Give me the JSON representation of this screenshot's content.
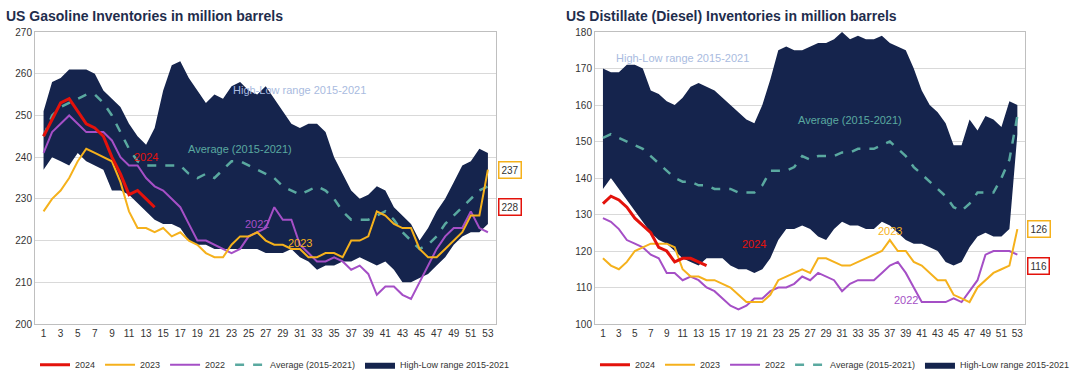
{
  "chart_data": [
    {
      "type": "line",
      "title": "US Gasoline Inventories in million barrels",
      "x": [
        1,
        2,
        3,
        4,
        5,
        6,
        7,
        8,
        9,
        10,
        11,
        12,
        13,
        14,
        15,
        16,
        17,
        18,
        19,
        20,
        21,
        22,
        23,
        24,
        25,
        26,
        27,
        28,
        29,
        30,
        31,
        32,
        33,
        34,
        35,
        36,
        37,
        38,
        39,
        40,
        41,
        42,
        43,
        44,
        45,
        46,
        47,
        48,
        49,
        50,
        51,
        52,
        53
      ],
      "xlim": [
        0,
        54
      ],
      "xticks": [
        1,
        3,
        5,
        7,
        9,
        11,
        13,
        15,
        17,
        19,
        21,
        23,
        25,
        27,
        29,
        31,
        33,
        35,
        37,
        39,
        41,
        43,
        45,
        47,
        49,
        51,
        53
      ],
      "ylim": [
        200,
        270
      ],
      "yticks": [
        200,
        210,
        220,
        230,
        240,
        250,
        260,
        270
      ],
      "grid": true,
      "legend": "bottom",
      "series": [
        {
          "name": "2024",
          "type": "line",
          "color": "#e3120b",
          "line_style": "solid",
          "values": [
            245,
            249,
            253,
            254,
            251,
            248,
            247,
            245,
            240,
            236,
            231,
            232,
            230,
            228,
            null,
            null,
            null,
            null,
            null,
            null,
            null,
            null,
            null,
            null,
            null,
            null,
            null,
            null,
            null,
            null,
            null,
            null,
            null,
            null,
            null,
            null,
            null,
            null,
            null,
            null,
            null,
            null,
            null,
            null,
            null,
            null,
            null,
            null,
            null,
            null,
            null,
            null,
            null
          ]
        },
        {
          "name": "2023",
          "type": "line",
          "color": "#f5b11c",
          "line_style": "solid",
          "values": [
            227,
            230,
            232,
            235,
            239,
            242,
            241,
            240,
            239,
            234,
            227,
            223,
            223,
            222,
            223,
            221,
            222,
            220,
            219,
            217,
            216,
            216,
            219,
            221,
            221,
            222,
            220,
            219,
            219,
            218,
            218,
            216,
            216,
            217,
            217,
            216,
            220,
            220,
            221,
            227,
            226,
            224,
            223,
            223,
            218,
            216,
            216,
            218,
            220,
            222,
            226,
            226,
            237
          ]
        },
        {
          "name": "2022",
          "type": "line",
          "color": "#a54fc6",
          "line_style": "solid",
          "values": [
            241,
            246,
            248,
            250,
            248,
            246,
            246,
            246,
            244,
            240,
            238,
            238,
            235,
            233,
            232,
            230,
            228,
            224,
            220,
            220,
            219,
            218,
            217,
            218,
            221,
            222,
            223,
            228,
            225,
            225,
            219,
            217,
            215,
            215,
            216,
            215,
            213,
            214,
            212,
            207,
            209,
            209,
            207,
            206,
            210,
            214,
            218,
            221,
            223,
            223,
            227,
            223,
            222
          ]
        },
        {
          "name": "Average (2015-2021)",
          "type": "line",
          "color": "#5aa9a0",
          "line_style": "dash",
          "values": [
            245,
            250,
            252,
            253,
            254,
            255,
            255,
            253,
            250,
            246,
            242,
            239,
            238,
            238,
            238,
            238,
            238,
            236,
            235,
            236,
            235,
            237,
            239,
            239,
            238,
            237,
            236,
            235,
            233,
            232,
            231,
            232,
            233,
            232,
            230,
            227,
            225,
            225,
            225,
            226,
            227,
            225,
            222,
            220,
            218,
            219,
            221,
            224,
            226,
            228,
            230,
            232,
            233
          ]
        },
        {
          "name": "High-Low range 2015-2021",
          "type": "band",
          "color": "#15244d",
          "high": [
            251,
            258,
            259,
            261,
            261,
            261,
            260,
            256,
            254,
            252,
            248,
            245,
            243,
            247,
            256,
            262,
            263,
            259,
            256,
            253,
            255,
            254,
            257,
            258,
            256,
            255,
            257,
            254,
            251,
            248,
            247,
            248,
            248,
            246,
            240,
            236,
            232,
            230,
            231,
            233,
            232,
            228,
            226,
            224,
            220,
            223,
            227,
            230,
            234,
            238,
            239,
            242,
            241
          ],
          "low": [
            237,
            240,
            239,
            238,
            241,
            239,
            238,
            237,
            232,
            232,
            231,
            229,
            227,
            225,
            224,
            224,
            223,
            220,
            219,
            219,
            218,
            218,
            218,
            218,
            218,
            218,
            217,
            217,
            217,
            218,
            216,
            215,
            213,
            214,
            214,
            215,
            215,
            216,
            215,
            214,
            215,
            213,
            210,
            210,
            211,
            212,
            214,
            216,
            219,
            221,
            222,
            222,
            224
          ]
        }
      ],
      "annotations": [
        {
          "text": "High-Low range 2015-2021",
          "x": 31,
          "y": 256,
          "color": "#a9bbe0"
        },
        {
          "text": "Average (2015-2021)",
          "x": 24,
          "y": 242,
          "color": "#5aa9a0"
        },
        {
          "text": "2024",
          "x": 13,
          "y": 240,
          "color": "#e3120b"
        },
        {
          "text": "2022",
          "x": 26,
          "y": 224,
          "color": "#a54fc6"
        },
        {
          "text": "2023",
          "x": 31,
          "y": 219.5,
          "color": "#f5b11c"
        }
      ],
      "end_labels": [
        {
          "text": "237",
          "x": 53,
          "y": 237,
          "color": "#f5b11c"
        },
        {
          "text": "228",
          "x": 53,
          "y": 228,
          "color": "#e3120b"
        }
      ]
    },
    {
      "type": "line",
      "title": "US Distillate (Diesel) Inventories in million barrels",
      "x": [
        1,
        2,
        3,
        4,
        5,
        6,
        7,
        8,
        9,
        10,
        11,
        12,
        13,
        14,
        15,
        16,
        17,
        18,
        19,
        20,
        21,
        22,
        23,
        24,
        25,
        26,
        27,
        28,
        29,
        30,
        31,
        32,
        33,
        34,
        35,
        36,
        37,
        38,
        39,
        40,
        41,
        42,
        43,
        44,
        45,
        46,
        47,
        48,
        49,
        50,
        51,
        52,
        53
      ],
      "xlim": [
        0,
        54
      ],
      "xticks": [
        1,
        3,
        5,
        7,
        9,
        11,
        13,
        15,
        17,
        19,
        21,
        23,
        25,
        27,
        29,
        31,
        33,
        35,
        37,
        39,
        41,
        43,
        45,
        47,
        49,
        51,
        53
      ],
      "ylim": [
        100,
        180
      ],
      "yticks": [
        100,
        110,
        120,
        130,
        140,
        150,
        160,
        170,
        180
      ],
      "grid": true,
      "legend": "bottom",
      "series": [
        {
          "name": "2024",
          "type": "line",
          "color": "#e3120b",
          "line_style": "solid",
          "values": [
            133,
            135,
            134,
            132,
            129,
            127,
            125,
            121,
            120,
            117,
            118,
            118,
            117,
            116,
            null,
            null,
            null,
            null,
            null,
            null,
            null,
            null,
            null,
            null,
            null,
            null,
            null,
            null,
            null,
            null,
            null,
            null,
            null,
            null,
            null,
            null,
            null,
            null,
            null,
            null,
            null,
            null,
            null,
            null,
            null,
            null,
            null,
            null,
            null,
            null,
            null,
            null,
            null
          ]
        },
        {
          "name": "2023",
          "type": "line",
          "color": "#f5b11c",
          "line_style": "solid",
          "values": [
            118,
            116,
            115,
            117,
            120,
            121,
            122,
            122,
            122,
            121,
            115,
            113,
            113,
            112,
            112,
            111,
            110,
            108,
            106,
            106,
            106,
            108,
            112,
            113,
            114,
            115,
            114,
            118,
            118,
            117,
            116,
            116,
            117,
            118,
            119,
            120,
            123,
            120,
            120,
            117,
            116,
            114,
            112,
            112,
            108,
            107,
            106,
            110,
            112,
            114,
            115,
            116,
            126
          ]
        },
        {
          "name": "2022",
          "type": "line",
          "color": "#a54fc6",
          "line_style": "solid",
          "values": [
            129,
            128,
            126,
            123,
            122,
            121,
            119,
            118,
            114,
            114,
            112,
            113,
            112,
            110,
            109,
            107,
            105,
            104,
            105,
            107,
            107,
            109,
            110,
            110,
            111,
            113,
            112,
            114,
            113,
            112,
            109,
            111,
            112,
            112,
            112,
            114,
            116,
            117,
            114,
            110,
            106,
            106,
            106,
            106,
            107,
            106,
            109,
            112,
            119,
            120,
            120,
            120,
            119
          ]
        },
        {
          "name": "Average (2015-2021)",
          "type": "line",
          "color": "#5aa9a0",
          "line_style": "dash",
          "values": [
            151,
            152,
            151,
            150,
            149,
            148,
            146,
            144,
            142,
            140,
            139,
            139,
            138,
            138,
            137,
            137,
            137,
            136,
            136,
            136,
            138,
            142,
            142,
            142,
            143,
            146,
            145,
            146,
            146,
            146,
            147,
            147,
            148,
            148,
            148,
            149,
            150,
            148,
            146,
            143,
            141,
            139,
            137,
            135,
            132,
            131,
            133,
            136,
            136,
            136,
            140,
            145,
            157
          ]
        },
        {
          "name": "High-Low range 2015-2021",
          "type": "band",
          "color": "#15244d",
          "high": [
            170,
            169,
            169,
            171,
            171,
            170,
            164,
            163,
            161,
            160,
            162,
            165,
            166,
            165,
            164,
            162,
            160,
            158,
            156,
            155,
            160,
            167,
            175,
            176,
            175,
            175,
            176,
            177,
            177,
            178,
            180,
            178,
            179,
            178,
            178,
            179,
            177,
            176,
            175,
            170,
            164,
            160,
            158,
            155,
            149,
            149,
            156,
            153,
            157,
            156,
            154,
            161,
            160
          ],
          "low": [
            137,
            140,
            137,
            134,
            131,
            128,
            125,
            123,
            122,
            120,
            118,
            117,
            116,
            118,
            118,
            118,
            116,
            115,
            115,
            114,
            115,
            118,
            123,
            126,
            126,
            127,
            126,
            124,
            123,
            126,
            128,
            127,
            127,
            126,
            126,
            128,
            127,
            125,
            123,
            122,
            122,
            121,
            120,
            117,
            116,
            117,
            121,
            124,
            125,
            124,
            124,
            126,
            152
          ]
        }
      ],
      "annotations": [
        {
          "text": "High-Low range 2015-2021",
          "x": 11,
          "y": 173,
          "color": "#a9bbe0"
        },
        {
          "text": "Average (2015-2021)",
          "x": 32,
          "y": 156,
          "color": "#5aa9a0"
        },
        {
          "text": "2024",
          "x": 20,
          "y": 122,
          "color": "#e3120b"
        },
        {
          "text": "2023",
          "x": 37,
          "y": 125.5,
          "color": "#f5b11c"
        },
        {
          "text": "2022",
          "x": 39,
          "y": 106.5,
          "color": "#a54fc6"
        }
      ],
      "end_labels": [
        {
          "text": "126",
          "x": 53,
          "y": 126,
          "color": "#f5b11c"
        },
        {
          "text": "116",
          "x": 53,
          "y": 116,
          "color": "#e3120b"
        }
      ]
    }
  ]
}
